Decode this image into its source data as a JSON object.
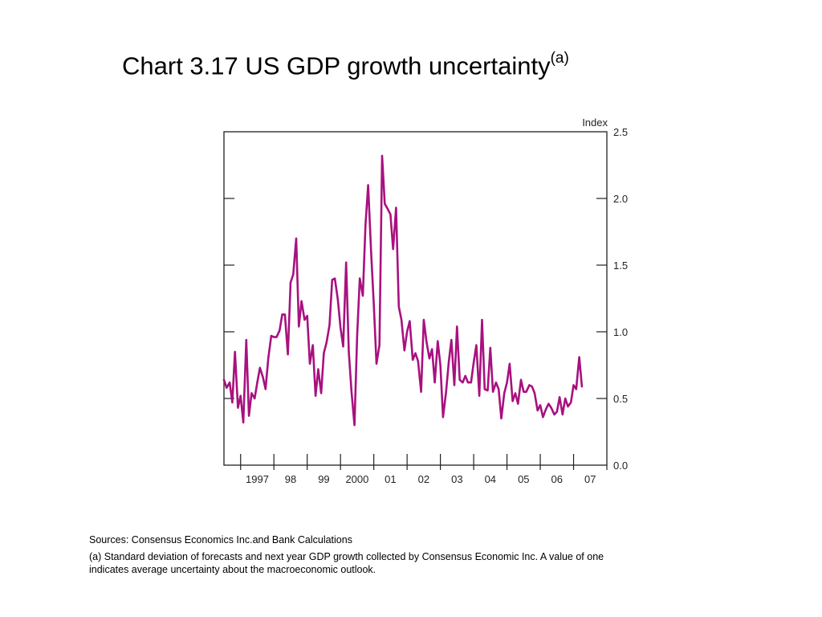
{
  "header": {
    "title": "Chart 3.17  US GDP growth uncertainty",
    "title_sup": "(a)"
  },
  "chart_data": {
    "type": "line",
    "title": "Chart 3.17  US GDP growth uncertainty(a)",
    "xlabel": "",
    "ylabel": "Index",
    "ylim": [
      0,
      2.5
    ],
    "yticks": [
      "0.0",
      "0.5",
      "1.0",
      "1.5",
      "2.0",
      "2.5"
    ],
    "x_tick_labels": [
      "1997",
      "98",
      "99",
      "2000",
      "01",
      "02",
      "03",
      "04",
      "05",
      "06",
      "07"
    ],
    "x_range": [
      1996.5,
      2008.0
    ],
    "grid": false,
    "legend": "none",
    "series": [
      {
        "color": "#a8117f",
        "x": [
          1996.5,
          1996.58,
          1996.67,
          1996.75,
          1996.83,
          1996.92,
          1997.0,
          1997.08,
          1997.17,
          1997.25,
          1997.33,
          1997.42,
          1997.5,
          1997.58,
          1997.67,
          1997.75,
          1997.83,
          1997.92,
          1998.0,
          1998.08,
          1998.17,
          1998.25,
          1998.33,
          1998.42,
          1998.5,
          1998.58,
          1998.67,
          1998.75,
          1998.83,
          1998.92,
          1999.0,
          1999.08,
          1999.17,
          1999.25,
          1999.33,
          1999.42,
          1999.5,
          1999.58,
          1999.67,
          1999.75,
          1999.83,
          1999.92,
          2000.0,
          2000.08,
          2000.17,
          2000.25,
          2000.33,
          2000.42,
          2000.5,
          2000.58,
          2000.67,
          2000.75,
          2000.83,
          2000.92,
          2001.0,
          2001.08,
          2001.17,
          2001.25,
          2001.33,
          2001.42,
          2001.5,
          2001.58,
          2001.67,
          2001.75,
          2001.83,
          2001.92,
          2002.0,
          2002.08,
          2002.17,
          2002.25,
          2002.33,
          2002.42,
          2002.5,
          2002.58,
          2002.67,
          2002.75,
          2002.83,
          2002.92,
          2003.0,
          2003.08,
          2003.17,
          2003.25,
          2003.33,
          2003.42,
          2003.5,
          2003.58,
          2003.67,
          2003.75,
          2003.83,
          2003.92,
          2004.0,
          2004.08,
          2004.17,
          2004.25,
          2004.33,
          2004.42,
          2004.5,
          2004.58,
          2004.67,
          2004.75,
          2004.83,
          2004.92,
          2005.0,
          2005.08,
          2005.17,
          2005.25,
          2005.33,
          2005.42,
          2005.5,
          2005.58,
          2005.67,
          2005.75,
          2005.83,
          2005.92,
          2006.0,
          2006.08,
          2006.17,
          2006.25,
          2006.33,
          2006.42,
          2006.5,
          2006.58,
          2006.67,
          2006.75,
          2006.83,
          2006.92,
          2007.0,
          2007.08,
          2007.17,
          2007.25
        ],
        "values": [
          0.64,
          0.58,
          0.62,
          0.47,
          0.85,
          0.43,
          0.52,
          0.32,
          0.94,
          0.37,
          0.54,
          0.5,
          0.62,
          0.73,
          0.66,
          0.57,
          0.8,
          0.97,
          0.96,
          0.96,
          1.01,
          1.13,
          1.13,
          0.83,
          1.37,
          1.43,
          1.7,
          1.04,
          1.23,
          1.09,
          1.12,
          0.76,
          0.9,
          0.52,
          0.72,
          0.54,
          0.84,
          0.92,
          1.05,
          1.39,
          1.4,
          1.24,
          1.03,
          0.89,
          1.52,
          0.85,
          0.55,
          0.3,
          0.97,
          1.4,
          1.27,
          1.8,
          2.1,
          1.6,
          1.2,
          0.76,
          0.9,
          2.32,
          1.96,
          1.92,
          1.88,
          1.62,
          1.93,
          1.19,
          1.09,
          0.86,
          1.0,
          1.08,
          0.79,
          0.84,
          0.78,
          0.55,
          1.09,
          0.93,
          0.8,
          0.87,
          0.62,
          0.93,
          0.75,
          0.36,
          0.55,
          0.77,
          0.94,
          0.6,
          1.04,
          0.64,
          0.62,
          0.67,
          0.62,
          0.62,
          0.77,
          0.9,
          0.52,
          1.09,
          0.57,
          0.56,
          0.88,
          0.55,
          0.62,
          0.57,
          0.35,
          0.54,
          0.62,
          0.76,
          0.48,
          0.54,
          0.46,
          0.64,
          0.55,
          0.55,
          0.6,
          0.59,
          0.54,
          0.41,
          0.45,
          0.36,
          0.42,
          0.46,
          0.43,
          0.38,
          0.4,
          0.51,
          0.38,
          0.5,
          0.44,
          0.47,
          0.6,
          0.57,
          0.81,
          0.59
        ]
      }
    ]
  },
  "notes": {
    "sources": "Sources: Consensus Economics Inc.and Bank Calculations",
    "footnote": "(a) Standard deviation of forecasts and next year GDP growth collected by Consensus Economic Inc.  A value of one indicates average uncertainty about the macroeconomic outlook."
  }
}
